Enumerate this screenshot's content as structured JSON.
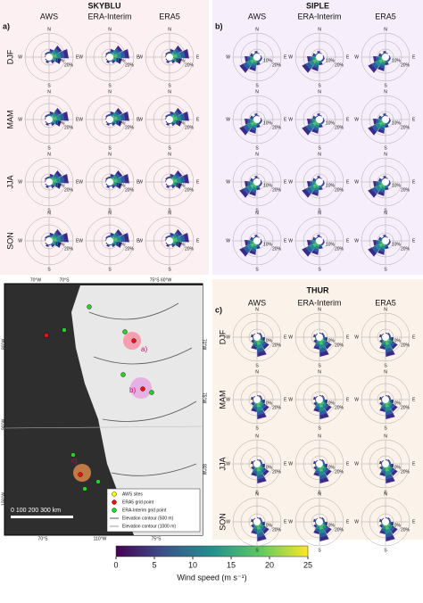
{
  "panels": [
    {
      "label": "a)",
      "title": "SKYBLU",
      "columns": [
        "AWS",
        "ERA-Interim",
        "ERA5"
      ],
      "rows": [
        "DJF",
        "MAM",
        "JJA",
        "SON"
      ]
    },
    {
      "label": "b)",
      "title": "SIPLE",
      "columns": [
        "AWS",
        "ERA-Interim",
        "ERA5"
      ]
    },
    {
      "label": "c)",
      "title": "THUR",
      "columns": [
        "AWS",
        "ERA-Interim",
        "ERA5"
      ],
      "rows": [
        "DJF",
        "MAM",
        "JJA",
        "SON"
      ]
    }
  ],
  "rose_labels": {
    "directions": [
      "N",
      "E",
      "S",
      "W"
    ],
    "rings": [
      "10%",
      "20%"
    ]
  },
  "map": {
    "top_labels": [
      "70°W",
      "70°S",
      "75°S 60°W"
    ],
    "bottom_labels": [
      "70°S",
      "110°W",
      "75°S"
    ],
    "left_labels": [
      "80°W",
      "90°W",
      "100°W"
    ],
    "right_labels": [
      "70°W",
      "75°W",
      "80°W"
    ],
    "site_labels": [
      "a)",
      "b)",
      "c)"
    ],
    "legend": [
      "AWS sites",
      "ERA5 grid point",
      "ERA-Interim grid point",
      "Elevation contour (500 m)",
      "Elevation contour (1000 m)"
    ],
    "scale": "0   100   200   300 km"
  },
  "colorbar": {
    "label": "Wind speed (m s⁻¹)",
    "lim": [
      0,
      25
    ],
    "ticks": [
      0,
      5,
      10,
      15,
      20,
      25
    ]
  }
}
